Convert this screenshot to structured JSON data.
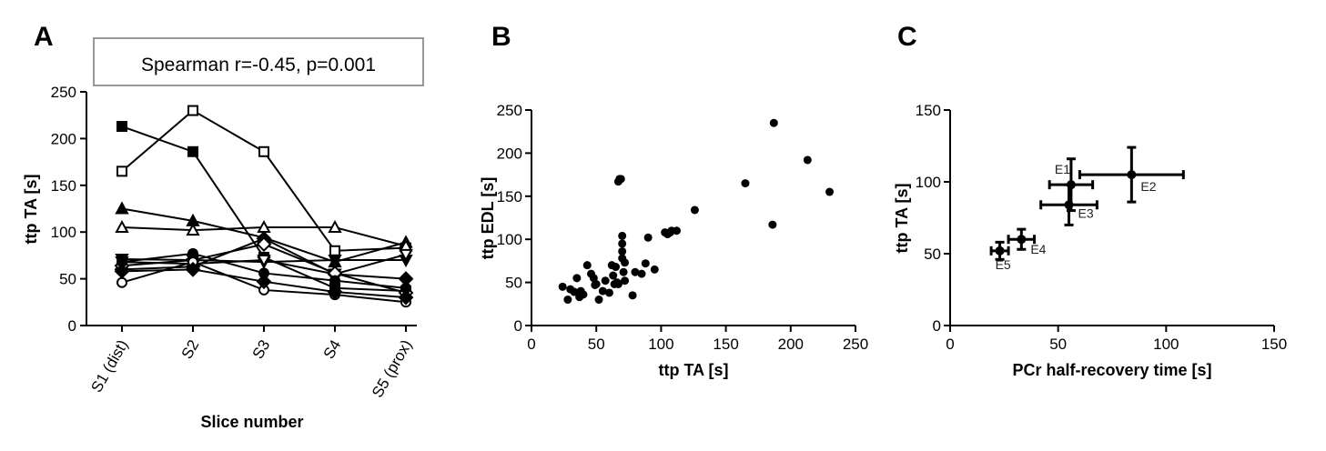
{
  "chart_data": [
    {
      "panel": "A",
      "type": "line",
      "annotation": "Spearman r=-0.45, p=0.001",
      "xlabel": "Slice number",
      "ylabel": "ttp TA [s]",
      "categories": [
        "S1 (dist)",
        "S2",
        "S3",
        "S4",
        "S5 (prox)"
      ],
      "ylim": [
        0,
        250
      ],
      "yticks": [
        0,
        50,
        100,
        150,
        200,
        250
      ],
      "series": [
        {
          "marker": "square-filled",
          "values": [
            213,
            186,
            73,
            40,
            37
          ]
        },
        {
          "marker": "square-open",
          "values": [
            165,
            230,
            186,
            80,
            83
          ]
        },
        {
          "marker": "triangle-up-filled",
          "values": [
            125,
            112,
            94,
            68,
            89
          ]
        },
        {
          "marker": "triangle-up-open",
          "values": [
            105,
            102,
            105,
            105,
            85
          ]
        },
        {
          "marker": "triangle-down-filled",
          "values": [
            71,
            70,
            68,
            70,
            70
          ]
        },
        {
          "marker": "triangle-down-open",
          "values": [
            68,
            66,
            70,
            55,
            76
          ]
        },
        {
          "marker": "diamond-filled",
          "values": [
            60,
            63,
            93,
            55,
            50
          ]
        },
        {
          "marker": "diamond-open",
          "values": [
            64,
            70,
            87,
            56,
            35
          ]
        },
        {
          "marker": "circle-filled",
          "values": [
            68,
            77,
            56,
            48,
            40
          ]
        },
        {
          "marker": "circle-open",
          "values": [
            46,
            68,
            38,
            33,
            25
          ]
        },
        {
          "marker": "diamond-filled",
          "values": [
            58,
            60,
            47,
            36,
            30
          ]
        }
      ]
    },
    {
      "panel": "B",
      "type": "scatter",
      "xlabel": "ttp TA [s]",
      "ylabel": "ttp EDL [s]",
      "xlim": [
        0,
        250
      ],
      "ylim": [
        0,
        250
      ],
      "xticks": [
        0,
        50,
        100,
        150,
        200,
        250
      ],
      "yticks": [
        0,
        50,
        100,
        150,
        200,
        250
      ],
      "points": [
        [
          24,
          45
        ],
        [
          28,
          30
        ],
        [
          30,
          42
        ],
        [
          33,
          39
        ],
        [
          35,
          55
        ],
        [
          37,
          33
        ],
        [
          38,
          40
        ],
        [
          40,
          36
        ],
        [
          43,
          70
        ],
        [
          46,
          60
        ],
        [
          48,
          55
        ],
        [
          49,
          47
        ],
        [
          50,
          48
        ],
        [
          52,
          30
        ],
        [
          55,
          40
        ],
        [
          57,
          52
        ],
        [
          60,
          38
        ],
        [
          62,
          70
        ],
        [
          63,
          58
        ],
        [
          64,
          48
        ],
        [
          65,
          68
        ],
        [
          66,
          50
        ],
        [
          67,
          48
        ],
        [
          67,
          167
        ],
        [
          68,
          170
        ],
        [
          69,
          170
        ],
        [
          70,
          104
        ],
        [
          70,
          95
        ],
        [
          70,
          86
        ],
        [
          70,
          78
        ],
        [
          71,
          62
        ],
        [
          72,
          52
        ],
        [
          72,
          73
        ],
        [
          78,
          35
        ],
        [
          80,
          62
        ],
        [
          85,
          60
        ],
        [
          88,
          72
        ],
        [
          90,
          102
        ],
        [
          95,
          65
        ],
        [
          103,
          108
        ],
        [
          105,
          106
        ],
        [
          107,
          108
        ],
        [
          108,
          110
        ],
        [
          112,
          110
        ],
        [
          126,
          134
        ],
        [
          165,
          165
        ],
        [
          186,
          117
        ],
        [
          187,
          235
        ],
        [
          213,
          192
        ],
        [
          230,
          155
        ]
      ]
    },
    {
      "panel": "C",
      "type": "scatter",
      "xlabel": "PCr half-recovery time [s]",
      "ylabel": "ttp TA [s]",
      "xlim": [
        0,
        150
      ],
      "ylim": [
        0,
        150
      ],
      "xticks": [
        0,
        50,
        100,
        150
      ],
      "yticks": [
        0,
        50,
        100,
        150
      ],
      "points": [
        {
          "label": "E1",
          "x": 56,
          "y": 98,
          "xerr": 10,
          "yerr": 18
        },
        {
          "label": "E2",
          "x": 84,
          "y": 105,
          "xerr": 24,
          "yerr": 19
        },
        {
          "label": "E3",
          "x": 55,
          "y": 84,
          "xerr": 13,
          "yerr": 14
        },
        {
          "label": "E4",
          "x": 33,
          "y": 60,
          "xerr": 6,
          "yerr": 7
        },
        {
          "label": "E5",
          "x": 23,
          "y": 52,
          "xerr": 4,
          "yerr": 6
        }
      ]
    }
  ]
}
